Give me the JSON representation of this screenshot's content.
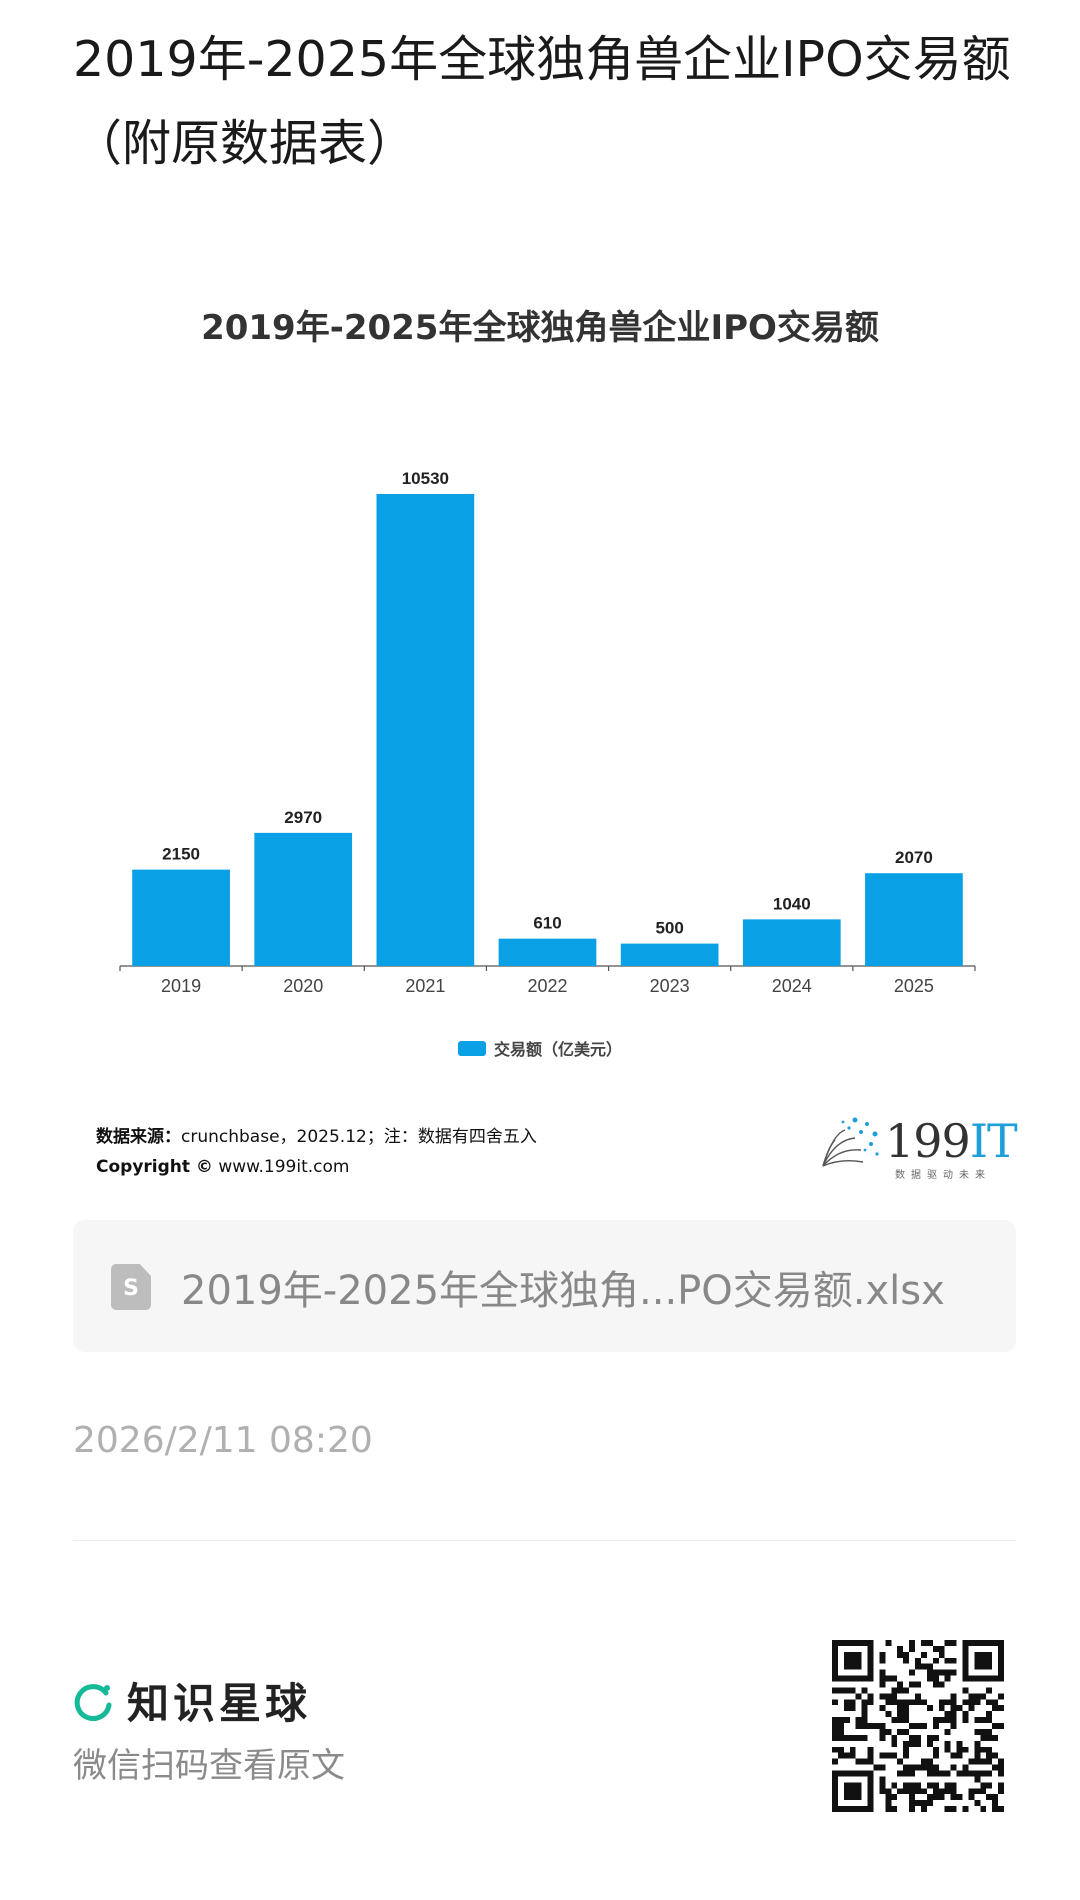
{
  "page": {
    "title": "2019年-2025年全球独角兽企业IPO交易额（附原数据表）"
  },
  "chart_data": {
    "type": "bar",
    "title": "2019年-2025年全球独角兽企业IPO交易额",
    "categories": [
      "2019",
      "2020",
      "2021",
      "2022",
      "2023",
      "2024",
      "2025"
    ],
    "series": [
      {
        "name": "交易额（亿美元）",
        "values": [
          2150,
          2970,
          10530,
          610,
          500,
          1040,
          2070
        ]
      }
    ],
    "data_labels": [
      "2150",
      "2970",
      "10530",
      "610",
      "500",
      "1040",
      "2070"
    ],
    "ylim": [
      0,
      10530
    ],
    "grid": false,
    "legend": "bottom",
    "color": "#0aa0e6"
  },
  "source": {
    "label": "数据来源：",
    "text": "crunchbase，2025.12；注：数据有四舍五入",
    "copyright_label": "Copyright ©",
    "copyright_text": "www.199it.com"
  },
  "brand": {
    "name_num": "199",
    "name_it": "IT",
    "tagline": "数据驱动未来"
  },
  "file": {
    "icon": "spreadsheet-file-icon",
    "icon_letter": "S",
    "name": "2019年-2025年全球独角...PO交易额.xlsx"
  },
  "timestamp": "2026/2/11 08:20",
  "footer": {
    "planet_name": "知识星球",
    "scan_hint": "微信扫码查看原文",
    "accent": "#16b998"
  }
}
